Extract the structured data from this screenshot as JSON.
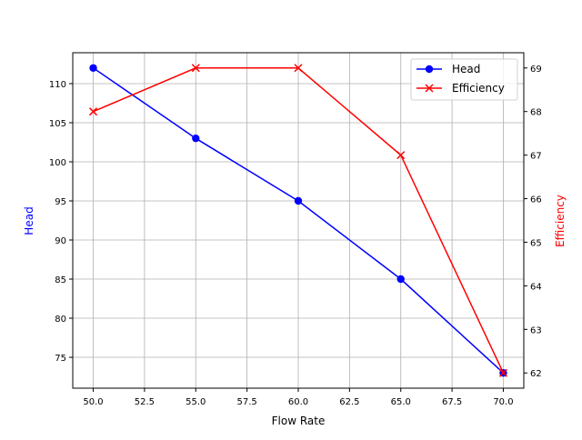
{
  "chart_data": {
    "type": "line",
    "title": "",
    "xlabel": "Flow Rate",
    "ylabel": "Head",
    "ylabel_right": "Efficiency",
    "x": [
      50,
      55,
      60,
      65,
      70
    ],
    "xlim": [
      49,
      71
    ],
    "ylim": [
      71.05,
      113.95
    ],
    "ylim_right": [
      61.65,
      69.35
    ],
    "xticks": [
      "50.0",
      "52.5",
      "55.0",
      "57.5",
      "60.0",
      "62.5",
      "65.0",
      "67.5",
      "70.0"
    ],
    "yticks": [
      "75",
      "80",
      "85",
      "90",
      "95",
      "100",
      "105",
      "110"
    ],
    "yticks_right": [
      "62",
      "63",
      "64",
      "65",
      "66",
      "67",
      "68",
      "69"
    ],
    "grid": true,
    "legend_position": "upper right",
    "series": [
      {
        "name": "Head",
        "axis": "left",
        "color": "#0000ff",
        "marker": "circle",
        "values": [
          112,
          103,
          95,
          85,
          73
        ]
      },
      {
        "name": "Efficiency",
        "axis": "right",
        "color": "#ff0000",
        "marker": "x",
        "values": [
          68,
          69,
          69,
          67,
          62
        ]
      }
    ]
  }
}
